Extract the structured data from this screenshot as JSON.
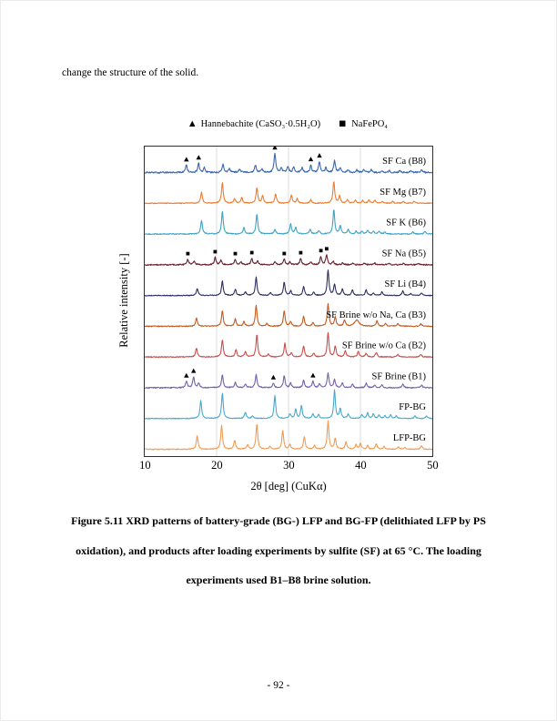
{
  "page": {
    "body_text": "change the structure of the solid.",
    "page_number": "- 92 -"
  },
  "legend": {
    "items": [
      {
        "glyph": "▲",
        "name": "hannebachite-marker",
        "label": "Hannebachite (CaSO₃·0.5H₂O)"
      },
      {
        "glyph": "■",
        "name": "nafepo4-marker",
        "label": "NaFePO₄"
      }
    ]
  },
  "caption": {
    "lines": [
      "Figure 5.11 XRD patterns of battery-grade (BG-) LFP and BG-FP (delithiated LFP by PS",
      "oxidation), and products after loading experiments by sulfite (SF) at 65 °C. The loading",
      "experiments used B1–B8 brine solution."
    ]
  },
  "chart_data": {
    "type": "line",
    "variant": "stacked-xrd-patterns",
    "title": "",
    "xlabel": "2θ [deg] (CuKα)",
    "ylabel": "Relative intensity [-]",
    "xlim": [
      10,
      50
    ],
    "xticks": [
      10,
      20,
      30,
      40,
      50
    ],
    "gridlines_x": [
      20,
      30,
      40
    ],
    "grid": "vertical-light-gray",
    "legend_position": "above-plot",
    "intensity_units": "relative (arbitrary units, stacked offsets top to bottom)",
    "series": [
      {
        "label": "SF Ca (B8)",
        "color": "#3a68b0",
        "noise": 0.85,
        "peaks": [
          [
            15.8,
            8
          ],
          [
            17.5,
            10
          ],
          [
            18.3,
            5
          ],
          [
            20.9,
            9
          ],
          [
            21.8,
            4
          ],
          [
            23.2,
            4
          ],
          [
            25.4,
            8
          ],
          [
            26.3,
            4
          ],
          [
            28.1,
            21
          ],
          [
            29.0,
            5
          ],
          [
            29.9,
            7
          ],
          [
            30.7,
            6
          ],
          [
            31.9,
            5
          ],
          [
            33.1,
            8
          ],
          [
            34.3,
            12
          ],
          [
            35.2,
            5
          ],
          [
            36.4,
            13
          ],
          [
            37.2,
            5
          ],
          [
            38.3,
            3
          ],
          [
            39.5,
            3
          ],
          [
            40.5,
            3
          ],
          [
            41.5,
            3
          ],
          [
            43.0,
            2
          ],
          [
            44.0,
            2
          ],
          [
            45.5,
            2
          ],
          [
            47.0,
            2
          ],
          [
            48.5,
            3
          ]
        ],
        "markers": {
          "symbol": "triangle",
          "phase": "Hannebachite",
          "positions": [
            15.8,
            17.5,
            28.1,
            33.1,
            34.3
          ]
        }
      },
      {
        "label": "SF Mg (B7)",
        "color": "#ec7c30",
        "noise": 0.5,
        "peaks": [
          [
            17.9,
            12
          ],
          [
            20.8,
            23
          ],
          [
            22.5,
            5
          ],
          [
            23.5,
            6
          ],
          [
            25.6,
            17
          ],
          [
            26.4,
            8
          ],
          [
            28.2,
            10
          ],
          [
            30.4,
            9
          ],
          [
            31.2,
            5
          ],
          [
            33.1,
            4
          ],
          [
            36.3,
            24
          ],
          [
            37.1,
            8
          ],
          [
            38.2,
            4
          ],
          [
            39.3,
            3
          ],
          [
            40.3,
            3
          ],
          [
            41.2,
            4
          ],
          [
            42.0,
            3
          ],
          [
            43.0,
            2
          ],
          [
            44.5,
            2
          ],
          [
            46.0,
            2
          ],
          [
            47.5,
            2
          ]
        ],
        "markers": null
      },
      {
        "label": "SF K (B6)",
        "color": "#3ea2c3",
        "noise": 0.5,
        "peaks": [
          [
            17.9,
            15
          ],
          [
            20.8,
            25
          ],
          [
            23.8,
            7
          ],
          [
            25.6,
            22
          ],
          [
            28.1,
            5
          ],
          [
            30.3,
            11
          ],
          [
            31.0,
            7
          ],
          [
            33.0,
            5
          ],
          [
            34.2,
            4
          ],
          [
            36.3,
            27
          ],
          [
            37.2,
            9
          ],
          [
            38.3,
            5
          ],
          [
            39.4,
            3
          ],
          [
            40.2,
            3
          ],
          [
            41.0,
            4
          ],
          [
            41.8,
            3
          ],
          [
            42.6,
            3
          ],
          [
            43.4,
            2
          ],
          [
            47.3,
            2
          ],
          [
            49.0,
            3
          ]
        ],
        "markers": null
      },
      {
        "label": "SF Na (B5)",
        "color": "#68222f",
        "noise": 0.7,
        "peaks": [
          [
            16.0,
            6
          ],
          [
            16.9,
            4
          ],
          [
            19.8,
            8
          ],
          [
            20.6,
            5
          ],
          [
            22.6,
            6
          ],
          [
            23.4,
            3
          ],
          [
            24.9,
            7
          ],
          [
            25.7,
            4
          ],
          [
            28.1,
            3
          ],
          [
            29.4,
            6
          ],
          [
            30.2,
            3
          ],
          [
            31.7,
            7
          ],
          [
            33.1,
            3
          ],
          [
            34.5,
            9
          ],
          [
            35.3,
            11
          ],
          [
            36.2,
            4
          ],
          [
            37.5,
            2
          ],
          [
            39.0,
            2
          ],
          [
            40.5,
            2
          ],
          [
            42.0,
            2
          ],
          [
            44.0,
            1.5
          ],
          [
            46.0,
            1.5
          ],
          [
            48.0,
            1.5
          ]
        ],
        "markers": {
          "symbol": "square",
          "phase": "NaFePO₄",
          "positions": [
            16.0,
            19.8,
            22.6,
            24.9,
            29.4,
            31.7,
            34.5,
            35.3
          ]
        }
      },
      {
        "label": "SF Li (B4)",
        "color": "#2e2f63",
        "noise": 0.5,
        "peaks": [
          [
            17.3,
            8
          ],
          [
            20.8,
            16
          ],
          [
            22.6,
            7
          ],
          [
            24.0,
            4
          ],
          [
            25.5,
            20
          ],
          [
            27.5,
            3
          ],
          [
            29.4,
            15
          ],
          [
            30.3,
            5
          ],
          [
            32.1,
            10
          ],
          [
            33.5,
            4
          ],
          [
            35.5,
            28
          ],
          [
            36.4,
            12
          ],
          [
            37.5,
            7
          ],
          [
            38.9,
            6
          ],
          [
            40.8,
            6
          ],
          [
            41.8,
            3
          ],
          [
            43.0,
            4
          ],
          [
            45.9,
            5
          ],
          [
            47.0,
            2
          ],
          [
            48.5,
            3
          ]
        ],
        "markers": null
      },
      {
        "label": "SF Brine w/o Na, Ca (B3)",
        "color": "#c55a1c",
        "noise": 0.5,
        "peaks": [
          [
            17.2,
            9
          ],
          [
            20.8,
            17
          ],
          [
            22.6,
            8
          ],
          [
            23.8,
            5
          ],
          [
            25.5,
            23
          ],
          [
            27.0,
            3
          ],
          [
            29.4,
            17
          ],
          [
            30.3,
            5
          ],
          [
            32.1,
            11
          ],
          [
            33.4,
            4
          ],
          [
            35.5,
            25
          ],
          [
            36.5,
            10
          ],
          [
            37.8,
            7
          ],
          [
            39.5,
            7,
            0.35
          ],
          [
            42.3,
            6
          ],
          [
            43.5,
            3
          ],
          [
            45.2,
            3
          ],
          [
            48.4,
            3
          ]
        ],
        "markers": null
      },
      {
        "label": "SF Brine w/o Ca (B2)",
        "color": "#c6504d",
        "noise": 0.5,
        "peaks": [
          [
            17.2,
            10
          ],
          [
            20.8,
            19
          ],
          [
            22.7,
            8
          ],
          [
            24.0,
            6
          ],
          [
            25.6,
            25
          ],
          [
            27.2,
            3
          ],
          [
            29.5,
            15
          ],
          [
            30.4,
            5
          ],
          [
            32.1,
            12
          ],
          [
            33.5,
            4
          ],
          [
            35.5,
            27
          ],
          [
            36.5,
            12
          ],
          [
            37.9,
            7
          ],
          [
            39.7,
            6
          ],
          [
            40.8,
            4
          ],
          [
            42.2,
            5
          ],
          [
            45.2,
            3
          ],
          [
            48.4,
            3
          ]
        ],
        "markers": null
      },
      {
        "label": "SF Brine (B1)",
        "color": "#7561ae",
        "noise": 0.6,
        "peaks": [
          [
            15.8,
            7
          ],
          [
            16.8,
            12
          ],
          [
            17.5,
            5
          ],
          [
            20.8,
            14
          ],
          [
            22.6,
            6
          ],
          [
            24.0,
            4
          ],
          [
            25.5,
            15
          ],
          [
            27.9,
            5
          ],
          [
            29.4,
            13
          ],
          [
            30.3,
            5
          ],
          [
            32.1,
            8
          ],
          [
            33.4,
            7
          ],
          [
            34.3,
            4
          ],
          [
            35.5,
            16
          ],
          [
            36.4,
            9
          ],
          [
            37.5,
            5
          ],
          [
            38.9,
            4
          ],
          [
            40.8,
            5
          ],
          [
            42.0,
            3
          ],
          [
            43.0,
            3
          ],
          [
            45.9,
            4
          ],
          [
            48.5,
            3
          ]
        ],
        "markers": {
          "symbol": "triangle",
          "phase": "Hannebachite",
          "positions": [
            15.8,
            16.8,
            27.9,
            33.4
          ]
        }
      },
      {
        "label": "FP-BG",
        "color": "#4ba8c8",
        "noise": 0.45,
        "peaks": [
          [
            17.8,
            20
          ],
          [
            20.8,
            28
          ],
          [
            24.0,
            7
          ],
          [
            25.0,
            3
          ],
          [
            28.1,
            25
          ],
          [
            30.2,
            5
          ],
          [
            31.0,
            10
          ],
          [
            31.8,
            14
          ],
          [
            33.4,
            5
          ],
          [
            34.2,
            4
          ],
          [
            36.4,
            31
          ],
          [
            37.2,
            11
          ],
          [
            38.3,
            5
          ],
          [
            40.2,
            4
          ],
          [
            41.0,
            6
          ],
          [
            41.8,
            5
          ],
          [
            42.6,
            4
          ],
          [
            43.4,
            3
          ],
          [
            44.2,
            4
          ],
          [
            45.0,
            3
          ],
          [
            47.6,
            3
          ],
          [
            49.2,
            3
          ]
        ],
        "markers": null
      },
      {
        "label": "LFP-BG",
        "color": "#f09b51",
        "noise": 0.45,
        "peaks": [
          [
            17.3,
            15
          ],
          [
            20.7,
            26
          ],
          [
            22.5,
            10
          ],
          [
            24.3,
            5
          ],
          [
            25.6,
            28
          ],
          [
            27.4,
            3
          ],
          [
            29.2,
            21
          ],
          [
            30.2,
            5
          ],
          [
            32.2,
            14
          ],
          [
            33.6,
            4
          ],
          [
            35.5,
            31
          ],
          [
            36.5,
            12
          ],
          [
            38.0,
            8
          ],
          [
            39.4,
            5
          ],
          [
            40.0,
            6
          ],
          [
            41.0,
            4
          ],
          [
            42.2,
            6
          ],
          [
            43.3,
            3
          ],
          [
            45.3,
            3
          ],
          [
            46.2,
            2
          ],
          [
            48.5,
            4
          ]
        ],
        "markers": null
      }
    ]
  }
}
